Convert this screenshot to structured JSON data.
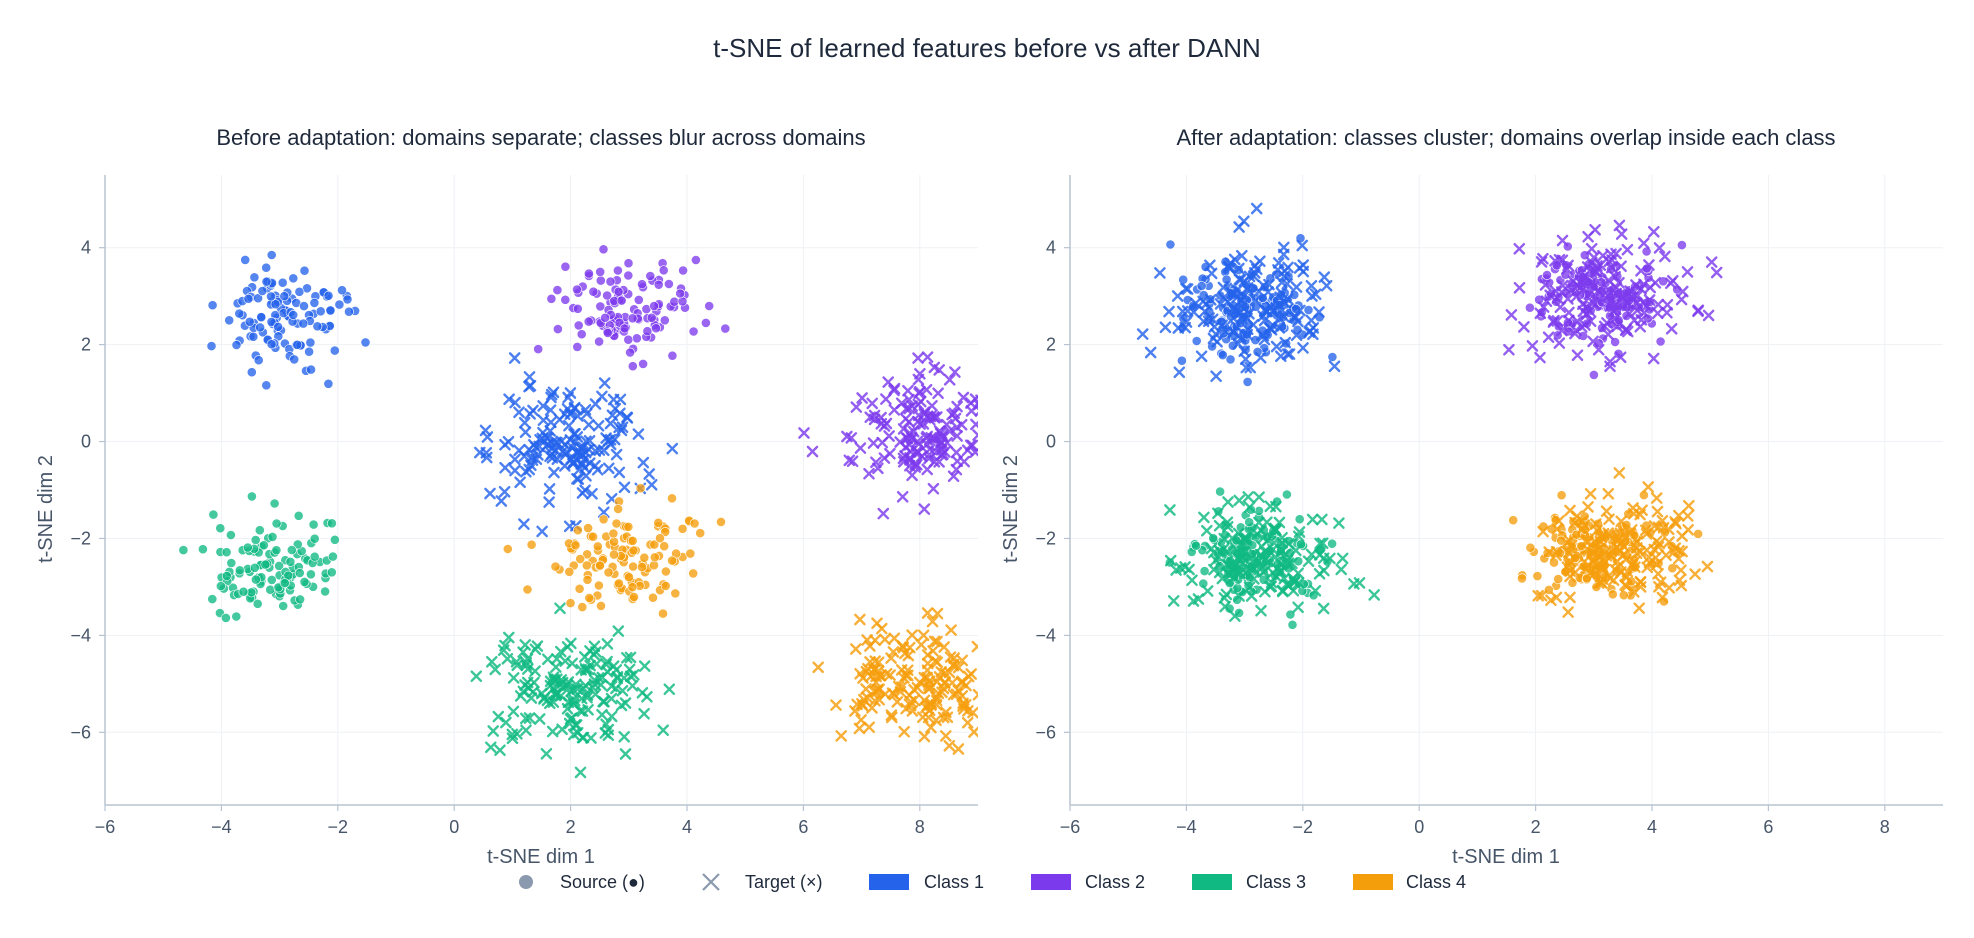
{
  "figure": {
    "title": "t-SNE of learned features before vs after DANN"
  },
  "legend": {
    "placement": "bottom-center",
    "items": [
      {
        "label": "Source (●)",
        "marker": "circle",
        "color": "#8a99ad"
      },
      {
        "label": "Target (×)",
        "marker": "x",
        "color": "#8a99ad"
      },
      {
        "label": "Class 1",
        "marker": "rect",
        "color": "#2563eb"
      },
      {
        "label": "Class 2",
        "marker": "rect",
        "color": "#7c3aed"
      },
      {
        "label": "Class 3",
        "marker": "rect",
        "color": "#10b981"
      },
      {
        "label": "Class 4",
        "marker": "rect",
        "color": "#f59e0b"
      }
    ]
  },
  "chart_data": [
    {
      "type": "scatter",
      "title": "Before adaptation: domains separate; classes blur across domains",
      "xlabel": "t-SNE dim 1",
      "ylabel": "t-SNE dim 2",
      "xlim": [
        -6,
        9
      ],
      "ylim": [
        -7.5,
        5.5
      ],
      "xticks": [
        -6,
        -4,
        -2,
        0,
        2,
        4,
        6,
        8
      ],
      "yticks": [
        -6,
        -4,
        -2,
        0,
        2,
        4
      ],
      "grid": true,
      "series": [
        {
          "name": "Class 1",
          "domain": "Source",
          "marker": "circle",
          "color": "#2563eb",
          "center": [
            -3.0,
            2.6
          ],
          "spread": [
            0.55,
            0.55
          ],
          "n": 120
        },
        {
          "name": "Class 1",
          "domain": "Target",
          "marker": "x",
          "color": "#2563eb",
          "center": [
            1.9,
            -0.1
          ],
          "spread": [
            0.65,
            0.6
          ],
          "n": 160
        },
        {
          "name": "Class 2",
          "domain": "Source",
          "marker": "circle",
          "color": "#7c3aed",
          "center": [
            3.0,
            2.8
          ],
          "spread": [
            0.6,
            0.5
          ],
          "n": 120
        },
        {
          "name": "Class 2",
          "domain": "Target",
          "marker": "x",
          "color": "#7c3aed",
          "center": [
            8.0,
            0.2
          ],
          "spread": [
            0.65,
            0.6
          ],
          "n": 160
        },
        {
          "name": "Class 3",
          "domain": "Source",
          "marker": "circle",
          "color": "#10b981",
          "center": [
            -3.1,
            -2.6
          ],
          "spread": [
            0.55,
            0.5
          ],
          "n": 120
        },
        {
          "name": "Class 3",
          "domain": "Target",
          "marker": "x",
          "color": "#10b981",
          "center": [
            2.0,
            -5.2
          ],
          "spread": [
            0.65,
            0.55
          ],
          "n": 160
        },
        {
          "name": "Class 4",
          "domain": "Source",
          "marker": "circle",
          "color": "#f59e0b",
          "center": [
            2.9,
            -2.4
          ],
          "spread": [
            0.6,
            0.5
          ],
          "n": 120
        },
        {
          "name": "Class 4",
          "domain": "Target",
          "marker": "x",
          "color": "#f59e0b",
          "center": [
            8.0,
            -5.0
          ],
          "spread": [
            0.6,
            0.55
          ],
          "n": 160
        }
      ]
    },
    {
      "type": "scatter",
      "title": "After adaptation: classes cluster; domains overlap inside each class",
      "xlabel": "t-SNE dim 1",
      "ylabel": "t-SNE dim 2",
      "xlim": [
        -6,
        9
      ],
      "ylim": [
        -7.5,
        5.5
      ],
      "xticks": [
        -6,
        -4,
        -2,
        0,
        2,
        4,
        6,
        8
      ],
      "yticks": [
        -6,
        -4,
        -2,
        0,
        2,
        4
      ],
      "grid": true,
      "series": [
        {
          "name": "Class 1",
          "domain": "Source",
          "marker": "circle",
          "color": "#2563eb",
          "center": [
            -3.0,
            2.6
          ],
          "spread": [
            0.55,
            0.55
          ],
          "n": 120
        },
        {
          "name": "Class 1",
          "domain": "Target",
          "marker": "x",
          "color": "#2563eb",
          "center": [
            -2.9,
            2.8
          ],
          "spread": [
            0.65,
            0.6
          ],
          "n": 160
        },
        {
          "name": "Class 2",
          "domain": "Source",
          "marker": "circle",
          "color": "#7c3aed",
          "center": [
            3.0,
            3.0
          ],
          "spread": [
            0.55,
            0.5
          ],
          "n": 120
        },
        {
          "name": "Class 2",
          "domain": "Target",
          "marker": "x",
          "color": "#7c3aed",
          "center": [
            3.2,
            3.0
          ],
          "spread": [
            0.65,
            0.6
          ],
          "n": 160
        },
        {
          "name": "Class 3",
          "domain": "Source",
          "marker": "circle",
          "color": "#10b981",
          "center": [
            -2.9,
            -2.4
          ],
          "spread": [
            0.55,
            0.5
          ],
          "n": 120
        },
        {
          "name": "Class 3",
          "domain": "Target",
          "marker": "x",
          "color": "#10b981",
          "center": [
            -2.7,
            -2.4
          ],
          "spread": [
            0.65,
            0.55
          ],
          "n": 160
        },
        {
          "name": "Class 4",
          "domain": "Source",
          "marker": "circle",
          "color": "#f59e0b",
          "center": [
            3.0,
            -2.3
          ],
          "spread": [
            0.6,
            0.5
          ],
          "n": 120
        },
        {
          "name": "Class 4",
          "domain": "Target",
          "marker": "x",
          "color": "#f59e0b",
          "center": [
            3.4,
            -2.3
          ],
          "spread": [
            0.65,
            0.55
          ],
          "n": 160
        }
      ]
    }
  ]
}
